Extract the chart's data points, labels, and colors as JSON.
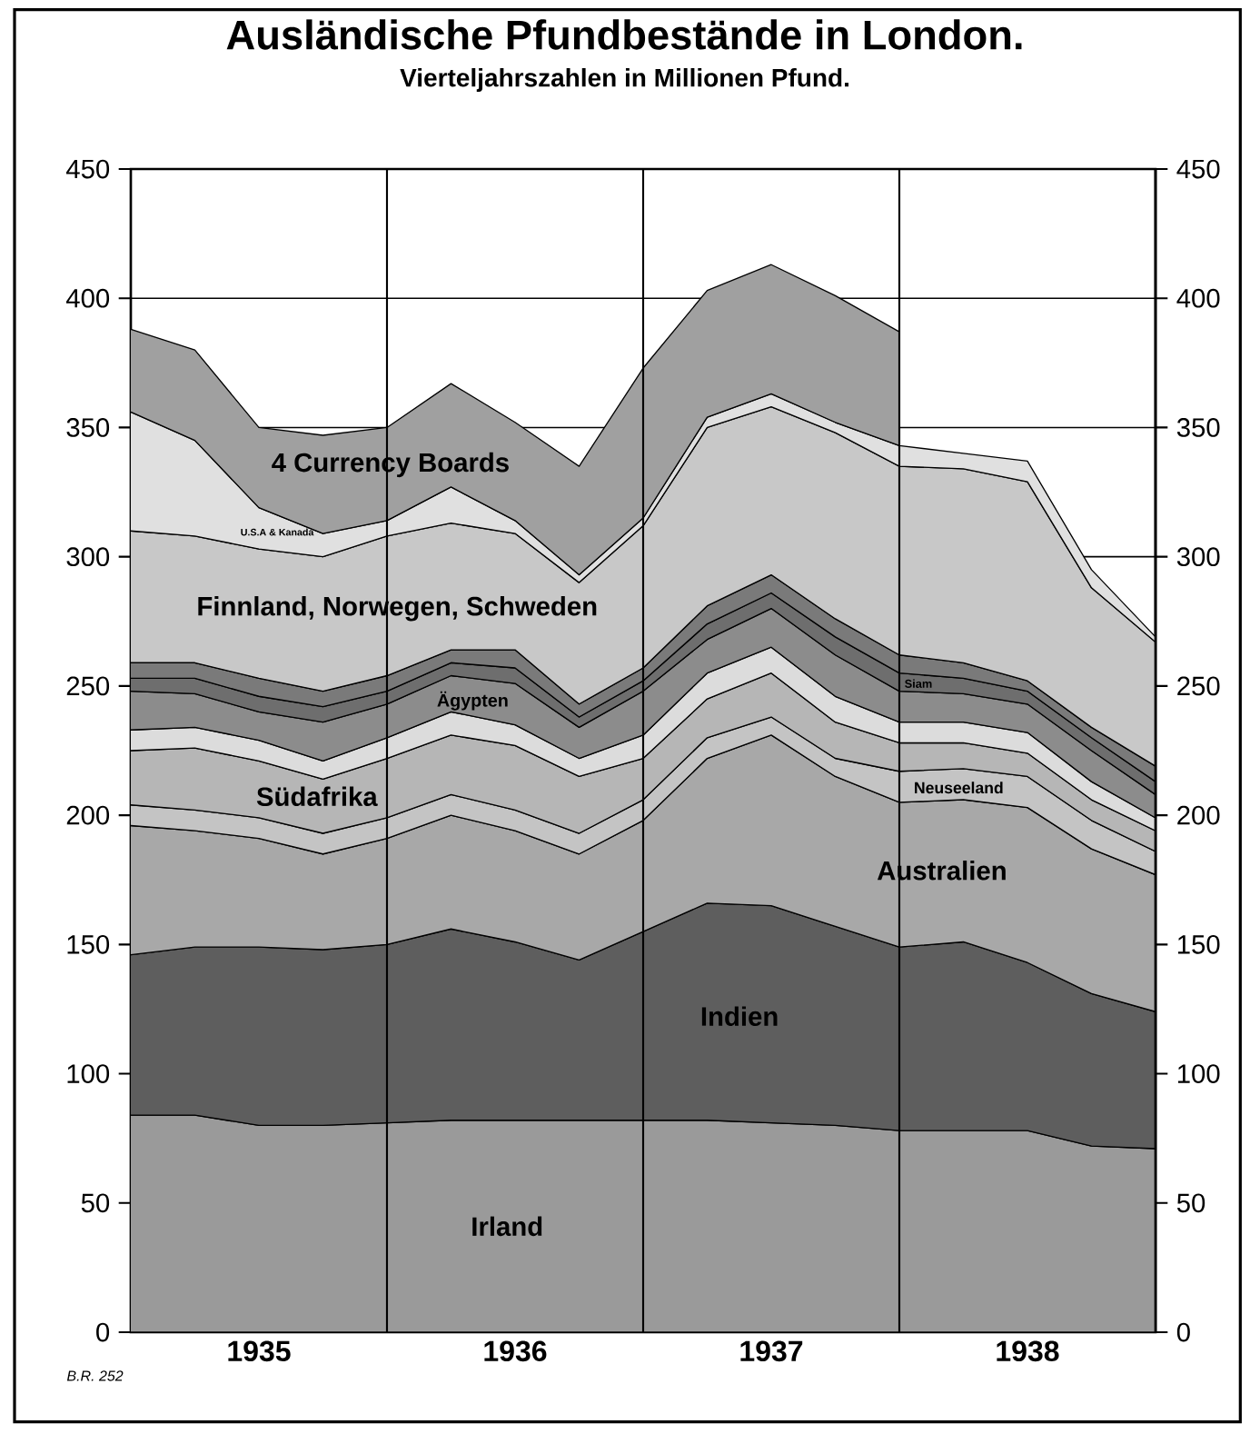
{
  "chart_data": {
    "type": "area",
    "title": "Ausländische Pfundbestände in London.",
    "subtitle": "Vierteljahrszahlen in Millionen Pfund.",
    "stacked": true,
    "x": [
      1935,
      1935.25,
      1935.5,
      1935.75,
      1936,
      1936.25,
      1936.5,
      1936.75,
      1937,
      1937.25,
      1937.5,
      1937.75,
      1938,
      1938.25,
      1938.5,
      1938.75,
      1939
    ],
    "xlim": [
      1935,
      1939
    ],
    "xticks": [
      {
        "value": 1935.25,
        "label": null
      },
      {
        "value": 1935.5,
        "label": "1935"
      },
      {
        "value": 1935.75,
        "label": null
      },
      {
        "value": 1936,
        "label": null
      },
      {
        "value": 1936.25,
        "label": null
      },
      {
        "value": 1936.5,
        "label": "1936"
      },
      {
        "value": 1936.75,
        "label": null
      },
      {
        "value": 1937,
        "label": null
      },
      {
        "value": 1937.25,
        "label": null
      },
      {
        "value": 1937.5,
        "label": "1937"
      },
      {
        "value": 1937.75,
        "label": null
      },
      {
        "value": 1938,
        "label": null
      },
      {
        "value": 1938.25,
        "label": null
      },
      {
        "value": 1938.5,
        "label": "1938"
      },
      {
        "value": 1938.75,
        "label": null
      }
    ],
    "ylim": [
      0,
      450
    ],
    "yticks": [
      0,
      50,
      100,
      150,
      200,
      250,
      300,
      350,
      400,
      450
    ],
    "y2lim": [
      0,
      450
    ],
    "y2ticks": [
      0,
      50,
      100,
      150,
      200,
      250,
      300,
      350,
      400,
      450
    ],
    "grid": "y",
    "ref_lines": [
      {
        "axis": "x",
        "value": 1936
      },
      {
        "axis": "x",
        "value": 1937
      },
      {
        "axis": "x",
        "value": 1938
      }
    ],
    "annotations": [
      "B.R. 252"
    ],
    "series": [
      {
        "name": "Irland",
        "color": "#9a9a9a",
        "values": [
          84,
          84,
          80,
          80,
          81,
          82,
          82,
          82,
          82,
          82,
          81,
          80,
          78,
          78,
          78,
          72,
          71
        ]
      },
      {
        "name": "Indien",
        "color": "#5e5e5e",
        "values": [
          62,
          65,
          69,
          68,
          69,
          74,
          69,
          62,
          73,
          84,
          84,
          77,
          71,
          73,
          65,
          59,
          53
        ]
      },
      {
        "name": "Australien",
        "color": "#a8a8a8",
        "values": [
          50,
          45,
          42,
          37,
          41,
          44,
          43,
          41,
          43,
          56,
          66,
          58,
          56,
          55,
          60,
          56,
          53
        ]
      },
      {
        "name": "Neuseeland",
        "color": "#c4c4c4",
        "values": [
          8,
          8,
          8,
          8,
          8,
          8,
          8,
          8,
          8,
          8,
          7,
          7,
          12,
          12,
          12,
          11,
          9
        ]
      },
      {
        "name": "Südafrika",
        "color": "#b6b6b6",
        "values": [
          21,
          24,
          22,
          21,
          23,
          23,
          25,
          22,
          16,
          15,
          17,
          14,
          11,
          10,
          9,
          8,
          8
        ]
      },
      {
        "color": "#dcdcdc",
        "values": [
          8,
          8,
          8,
          7,
          8,
          9,
          8,
          7,
          9,
          10,
          10,
          10,
          8,
          8,
          8,
          7,
          5
        ]
      },
      {
        "name": "Ägypten",
        "color": "#8c8c8c",
        "values": [
          15,
          13,
          11,
          15,
          13,
          14,
          16,
          12,
          17,
          13,
          15,
          16,
          12,
          11,
          11,
          12,
          9
        ]
      },
      {
        "name": "Siam",
        "color": "#6e6e6e",
        "values": [
          5,
          6,
          6,
          6,
          5,
          5,
          6,
          4,
          4,
          6,
          6,
          7,
          7,
          6,
          5,
          5,
          5
        ]
      },
      {
        "color": "#7a7a7a",
        "values": [
          6,
          6,
          7,
          6,
          6,
          5,
          7,
          5,
          5,
          7,
          7,
          7,
          7,
          6,
          4,
          4,
          6
        ]
      },
      {
        "name": "Finnland, Norwegen, Schweden",
        "color": "#c8c8c8",
        "values": [
          51,
          49,
          50,
          52,
          54,
          49,
          45,
          47,
          55,
          69,
          65,
          72,
          73,
          75,
          77,
          54,
          48
        ]
      },
      {
        "name": "U.S.A & Kanada",
        "color": "#e0e0e0",
        "values": [
          46,
          37,
          16,
          9,
          6,
          14,
          5,
          3,
          3,
          4,
          5,
          4,
          8,
          6,
          8,
          7,
          2
        ]
      },
      {
        "name": "4 Currency Boards",
        "color": "#a0a0a0",
        "values": [
          32,
          35,
          31,
          38,
          36,
          40,
          38,
          42,
          58,
          49,
          50,
          49,
          44,
          null,
          null,
          null,
          null
        ]
      }
    ]
  }
}
